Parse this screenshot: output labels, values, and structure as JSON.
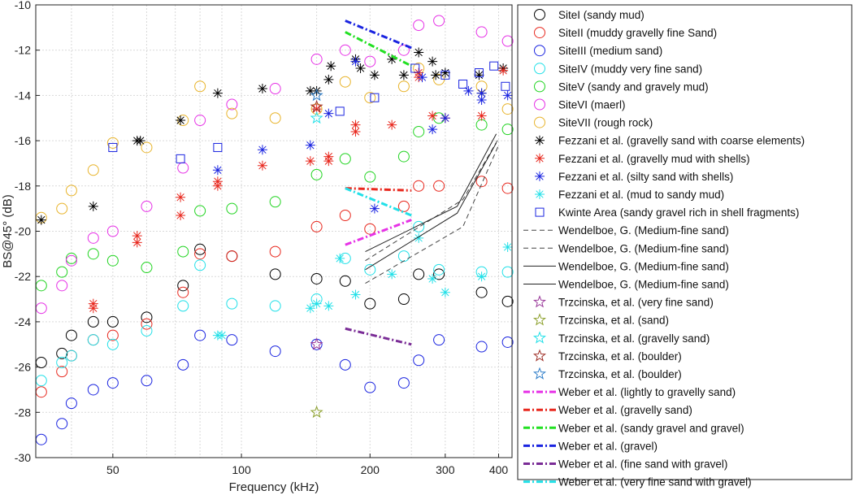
{
  "chart_data": {
    "type": "scatter",
    "title": "",
    "xlabel": "Frequency (kHz)",
    "ylabel": "BS@45° (dB)",
    "xscale": "log",
    "xlim": [
      33,
      430
    ],
    "ylim": [
      -30,
      -10
    ],
    "grid": true,
    "legend_position": "right",
    "x_ticks": [
      {
        "value": 50,
        "label": "50"
      },
      {
        "value": 100,
        "label": "100"
      },
      {
        "value": 200,
        "label": "200"
      },
      {
        "value": 300,
        "label": "300"
      },
      {
        "value": 400,
        "label": "400"
      }
    ],
    "y_ticks": [
      -30,
      -28,
      -26,
      -24,
      -22,
      -20,
      -18,
      -16,
      -14,
      -12,
      -10
    ],
    "x_minor_grid": [
      40,
      60,
      70,
      80,
      90,
      150,
      250,
      350
    ],
    "series": [
      {
        "name": "SiteI (sandy mud)",
        "marker": "circle",
        "color": "#000000",
        "points": [
          [
            34,
            -25.8
          ],
          [
            38,
            -25.4
          ],
          [
            40,
            -24.6
          ],
          [
            45,
            -24.0
          ],
          [
            50,
            -24.0
          ],
          [
            60,
            -23.8
          ],
          [
            73,
            -22.4
          ],
          [
            80,
            -20.8
          ],
          [
            95,
            -21.1
          ],
          [
            120,
            -21.9
          ],
          [
            150,
            -22.1
          ],
          [
            175,
            -22.2
          ],
          [
            200,
            -23.2
          ],
          [
            240,
            -23.0
          ],
          [
            260,
            -21.9
          ],
          [
            290,
            -21.9
          ],
          [
            365,
            -22.7
          ],
          [
            420,
            -23.1
          ]
        ]
      },
      {
        "name": "SiteII (muddy gravelly fine Sand)",
        "marker": "circle",
        "color": "#e8281e",
        "points": [
          [
            34,
            -27.1
          ],
          [
            38,
            -26.2
          ],
          [
            40,
            -25.5
          ],
          [
            45,
            -24.8
          ],
          [
            50,
            -24.6
          ],
          [
            60,
            -24.1
          ],
          [
            73,
            -22.7
          ],
          [
            80,
            -21.0
          ],
          [
            95,
            -21.1
          ],
          [
            120,
            -20.9
          ],
          [
            150,
            -19.8
          ],
          [
            175,
            -19.3
          ],
          [
            200,
            -19.9
          ],
          [
            240,
            -18.9
          ],
          [
            260,
            -18.0
          ],
          [
            290,
            -18.0
          ],
          [
            365,
            -17.8
          ],
          [
            420,
            -18.1
          ]
        ]
      },
      {
        "name": "SiteIII (medium sand)",
        "marker": "circle",
        "color": "#1a24e0",
        "points": [
          [
            34,
            -29.2
          ],
          [
            38,
            -28.5
          ],
          [
            40,
            -27.6
          ],
          [
            45,
            -27.0
          ],
          [
            50,
            -26.7
          ],
          [
            60,
            -26.6
          ],
          [
            73,
            -25.9
          ],
          [
            80,
            -24.6
          ],
          [
            95,
            -24.8
          ],
          [
            120,
            -25.3
          ],
          [
            150,
            -25.0
          ],
          [
            175,
            -25.9
          ],
          [
            200,
            -26.9
          ],
          [
            240,
            -26.7
          ],
          [
            260,
            -25.7
          ],
          [
            290,
            -24.8
          ],
          [
            365,
            -25.1
          ],
          [
            420,
            -24.9
          ]
        ]
      },
      {
        "name": "SiteIV (muddy very fine sand)",
        "marker": "circle",
        "color": "#22e0e8",
        "points": [
          [
            34,
            -26.6
          ],
          [
            38,
            -25.8
          ],
          [
            40,
            -25.5
          ],
          [
            45,
            -24.8
          ],
          [
            50,
            -25.0
          ],
          [
            60,
            -24.4
          ],
          [
            73,
            -23.3
          ],
          [
            80,
            -21.5
          ],
          [
            95,
            -23.2
          ],
          [
            120,
            -23.3
          ],
          [
            150,
            -23.0
          ],
          [
            175,
            -21.2
          ],
          [
            200,
            -21.7
          ],
          [
            240,
            -21.1
          ],
          [
            260,
            -19.8
          ],
          [
            290,
            -21.7
          ],
          [
            365,
            -21.8
          ],
          [
            420,
            -21.8
          ]
        ]
      },
      {
        "name": "SiteV (sandy and gravely mud)",
        "marker": "circle",
        "color": "#22d422",
        "points": [
          [
            34,
            -22.4
          ],
          [
            38,
            -21.8
          ],
          [
            40,
            -21.2
          ],
          [
            45,
            -21.0
          ],
          [
            50,
            -21.3
          ],
          [
            60,
            -21.6
          ],
          [
            73,
            -20.9
          ],
          [
            80,
            -19.1
          ],
          [
            95,
            -19.0
          ],
          [
            120,
            -18.7
          ],
          [
            150,
            -17.5
          ],
          [
            175,
            -16.8
          ],
          [
            200,
            -17.6
          ],
          [
            240,
            -16.7
          ],
          [
            260,
            -15.6
          ],
          [
            290,
            -15.0
          ],
          [
            365,
            -15.3
          ],
          [
            420,
            -15.5
          ]
        ]
      },
      {
        "name": "SiteVI (maerl)",
        "marker": "circle",
        "color": "#e632e6",
        "points": [
          [
            34,
            -23.4
          ],
          [
            38,
            -22.4
          ],
          [
            40,
            -21.3
          ],
          [
            45,
            -20.3
          ],
          [
            50,
            -20.0
          ],
          [
            60,
            -18.9
          ],
          [
            73,
            -17.2
          ],
          [
            80,
            -15.1
          ],
          [
            95,
            -14.4
          ],
          [
            120,
            -13.7
          ],
          [
            150,
            -12.4
          ],
          [
            175,
            -12.0
          ],
          [
            200,
            -12.5
          ],
          [
            240,
            -12.0
          ],
          [
            260,
            -10.9
          ],
          [
            290,
            -10.7
          ],
          [
            365,
            -11.2
          ],
          [
            420,
            -11.6
          ]
        ]
      },
      {
        "name": "SiteVII (rough rock)",
        "marker": "circle",
        "color": "#e8b42c",
        "points": [
          [
            34,
            -19.4
          ],
          [
            38,
            -19.0
          ],
          [
            40,
            -18.2
          ],
          [
            45,
            -17.3
          ],
          [
            50,
            -16.1
          ],
          [
            60,
            -16.3
          ],
          [
            73,
            -15.1
          ],
          [
            80,
            -13.6
          ],
          [
            95,
            -14.8
          ],
          [
            120,
            -15.0
          ],
          [
            150,
            -14.6
          ],
          [
            175,
            -13.4
          ],
          [
            200,
            -14.1
          ],
          [
            240,
            -13.6
          ],
          [
            260,
            -12.8
          ],
          [
            290,
            -13.3
          ],
          [
            365,
            -13.6
          ],
          [
            420,
            -14.6
          ]
        ]
      },
      {
        "name": "Fezzani et al. (gravelly sand with coarse elements)",
        "marker": "asterisk",
        "color": "#000000",
        "points": [
          [
            34,
            -19.5
          ],
          [
            45,
            -18.9
          ],
          [
            57,
            -16.0
          ],
          [
            58,
            -16.0
          ],
          [
            72,
            -15.1
          ],
          [
            88,
            -13.9
          ],
          [
            112,
            -13.7
          ],
          [
            145,
            -13.8
          ],
          [
            150,
            -13.8
          ],
          [
            160,
            -13.3
          ],
          [
            162,
            -12.7
          ],
          [
            185,
            -12.4
          ],
          [
            190,
            -12.8
          ],
          [
            205,
            -13.1
          ],
          [
            225,
            -12.4
          ],
          [
            240,
            -13.1
          ],
          [
            260,
            -12.1
          ],
          [
            280,
            -12.5
          ],
          [
            285,
            -13.1
          ],
          [
            300,
            -13.0
          ],
          [
            360,
            -13.1
          ],
          [
            365,
            -13.9
          ],
          [
            410,
            -12.8
          ]
        ]
      },
      {
        "name": "Fezzani et al. (gravelly mud with shells)",
        "marker": "asterisk",
        "color": "#e8281e",
        "points": [
          [
            45,
            -23.2
          ],
          [
            45,
            -23.4
          ],
          [
            57,
            -20.2
          ],
          [
            57,
            -20.5
          ],
          [
            72,
            -18.5
          ],
          [
            72,
            -19.3
          ],
          [
            88,
            -17.8
          ],
          [
            88,
            -18.0
          ],
          [
            112,
            -17.1
          ],
          [
            145,
            -16.9
          ],
          [
            150,
            -14.6
          ],
          [
            160,
            -16.7
          ],
          [
            160,
            -16.9
          ],
          [
            185,
            -15.3
          ],
          [
            185,
            -15.6
          ],
          [
            225,
            -15.3
          ],
          [
            260,
            -13.0
          ],
          [
            260,
            -13.2
          ],
          [
            280,
            -14.9
          ],
          [
            300,
            -15.0
          ],
          [
            365,
            -14.9
          ],
          [
            410,
            -12.9
          ]
        ]
      },
      {
        "name": "Fezzani et al. (silty sand with shells)",
        "marker": "asterisk",
        "color": "#1a24e0",
        "points": [
          [
            88,
            -17.3
          ],
          [
            112,
            -16.4
          ],
          [
            145,
            -16.2
          ],
          [
            160,
            -14.8
          ],
          [
            185,
            -12.5
          ],
          [
            205,
            -19.0
          ],
          [
            265,
            -13.2
          ],
          [
            280,
            -15.5
          ],
          [
            300,
            -15.0
          ],
          [
            340,
            -13.8
          ],
          [
            365,
            -13.9
          ],
          [
            365,
            -14.2
          ],
          [
            420,
            -14.0
          ]
        ]
      },
      {
        "name": "Fezzani et al. (mud to sandy mud)",
        "marker": "asterisk",
        "color": "#22e0e8",
        "points": [
          [
            88,
            -24.6
          ],
          [
            90,
            -24.6
          ],
          [
            145,
            -23.4
          ],
          [
            150,
            -23.2
          ],
          [
            160,
            -23.3
          ],
          [
            170,
            -21.2
          ],
          [
            185,
            -22.8
          ],
          [
            225,
            -21.9
          ],
          [
            260,
            -20.3
          ],
          [
            280,
            -22.1
          ],
          [
            300,
            -22.7
          ],
          [
            365,
            -22.0
          ],
          [
            420,
            -20.7
          ]
        ]
      },
      {
        "name": "Kwinte Area (sandy gravel rich in shell fragments)",
        "marker": "square",
        "color": "#1a24e0",
        "points": [
          [
            50,
            -16.3
          ],
          [
            72,
            -16.8
          ],
          [
            88,
            -16.3
          ],
          [
            170,
            -14.7
          ],
          [
            205,
            -14.1
          ],
          [
            255,
            -12.8
          ],
          [
            300,
            -13.1
          ],
          [
            330,
            -13.5
          ],
          [
            360,
            -13.0
          ],
          [
            390,
            -12.7
          ],
          [
            415,
            -13.6
          ]
        ]
      },
      {
        "name": "Wendelboe, G. (Medium-fine sand)",
        "marker": "line-dashed",
        "color": "#444444",
        "points": [
          [
            195,
            -21.3
          ],
          [
            330,
            -18.6
          ],
          [
            400,
            -15.9
          ]
        ]
      },
      {
        "name": "Wendelboe, G. (Medium-fine sand)",
        "marker": "line-dashed",
        "color": "#444444",
        "points": [
          [
            195,
            -22.3
          ],
          [
            330,
            -19.8
          ],
          [
            400,
            -16.2
          ]
        ]
      },
      {
        "name": "Wendelboe, G. (Medium-fine sand)",
        "marker": "line-solid",
        "color": "#222222",
        "points": [
          [
            195,
            -20.9
          ],
          [
            320,
            -18.9
          ],
          [
            395,
            -15.7
          ]
        ]
      },
      {
        "name": "Wendelboe, G. (Medium-fine sand)",
        "marker": "line-solid",
        "color": "#222222",
        "points": [
          [
            195,
            -21.7
          ],
          [
            320,
            -19.2
          ],
          [
            395,
            -16.1
          ]
        ]
      },
      {
        "name": "Trzcinska, et al. (very fine sand)",
        "marker": "star",
        "color": "#9a3a9a",
        "points": [
          [
            150,
            -25.0
          ]
        ]
      },
      {
        "name": "Trzcinska, et al. (sand)",
        "marker": "star",
        "color": "#8ca02c",
        "points": [
          [
            150,
            -28.0
          ]
        ]
      },
      {
        "name": "Trzcinska, et al. (gravelly sand)",
        "marker": "star",
        "color": "#22e0e8",
        "points": [
          [
            150,
            -15.0
          ]
        ]
      },
      {
        "name": "Trzcinska, et al. (boulder)",
        "marker": "star",
        "color": "#a0322a",
        "points": [
          [
            150,
            -14.5
          ]
        ]
      },
      {
        "name": "Trzcinska, et al. (boulder)",
        "marker": "star",
        "color": "#2c7cc8",
        "points": [
          [
            150,
            -14.0
          ]
        ]
      },
      {
        "name": "Weber et al. (lightly to gravelly sand)",
        "marker": "line-dashdot",
        "color": "#e632e6",
        "points": [
          [
            175,
            -20.6
          ],
          [
            250,
            -19.5
          ]
        ]
      },
      {
        "name": "Weber et al. (gravelly sand)",
        "marker": "line-dashdot",
        "color": "#e8281e",
        "points": [
          [
            175,
            -18.1
          ],
          [
            250,
            -18.2
          ]
        ]
      },
      {
        "name": "Weber et al. (sandy gravel and gravel)",
        "marker": "line-dashdot",
        "color": "#22e022",
        "points": [
          [
            175,
            -11.2
          ],
          [
            250,
            -12.7
          ]
        ]
      },
      {
        "name": "Weber et al. (gravel)",
        "marker": "line-dashdot",
        "color": "#1a24e0",
        "points": [
          [
            175,
            -10.7
          ],
          [
            250,
            -11.9
          ]
        ]
      },
      {
        "name": "Weber et al. (fine sand with gravel)",
        "marker": "line-dashdot",
        "color": "#7a2c96",
        "points": [
          [
            175,
            -24.3
          ],
          [
            250,
            -25.0
          ]
        ]
      },
      {
        "name": "Weber et al. (very fine sand with gravel)",
        "marker": "line-dashdot",
        "color": "#22e0e8",
        "points": [
          [
            175,
            -18.1
          ],
          [
            250,
            -19.3
          ]
        ]
      }
    ]
  }
}
